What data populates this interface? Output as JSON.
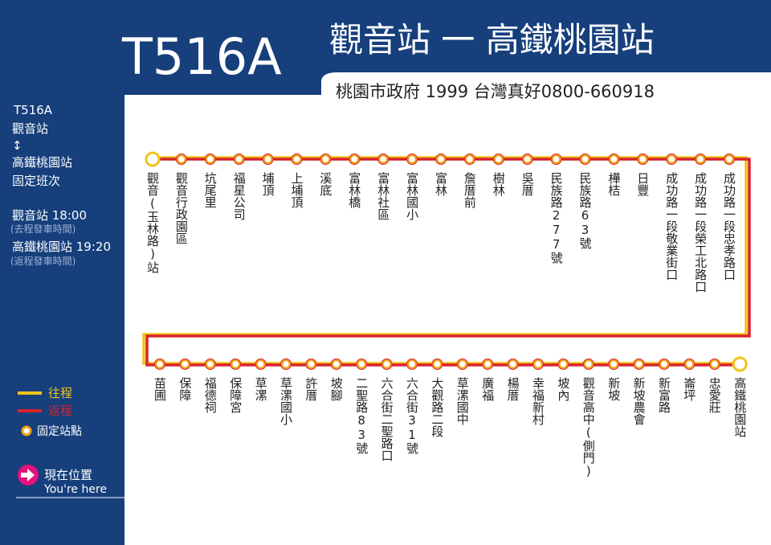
{
  "header": {
    "route": "T516A",
    "title": "觀音站 一 高鐵桃園站",
    "hotline": "桃園市政府 1999  台灣真好0800-660918"
  },
  "sidebar": {
    "route": "T516A",
    "from": "觀音站",
    "arrow": "↕",
    "to": "高鐵桃園站",
    "service": "固定班次",
    "schedule": [
      {
        "time": "觀音站 18:00",
        "note": "(去程發車時間)"
      },
      {
        "time": "高鐵桃園站 19:20",
        "note": "(返程發車時間)"
      }
    ]
  },
  "legend": {
    "outbound": "往程",
    "return": "返程",
    "fixed_stop": "固定站點",
    "here": "現在位置",
    "here_en": "You're here"
  },
  "stops": {
    "top_row": [
      "觀音(玉林路)站",
      "觀音行政園區",
      "坑尾里",
      "福星公司",
      "埔頂",
      "上埔頂",
      "溪底",
      "富林橋",
      "富林社區",
      "富林國小",
      "富林",
      "詹厝前",
      "樹林",
      "吳厝",
      "民族路277號",
      "民族路63號",
      "樺桔",
      "日豐",
      "成功路一段敬業街口",
      "成功路一段榮工北路口",
      "成功路一段忠孝路口"
    ],
    "bottom_row": [
      "苗圃",
      "保障",
      "福德祠",
      "保障宮",
      "草漯",
      "草漯國小",
      "許厝",
      "坡腳",
      "二聖路83號",
      "六合街二聖路口",
      "六合街31號",
      "大觀路二段",
      "草漯國中",
      "廣福",
      "楊厝",
      "幸福新村",
      "坡內",
      "觀音高中(側門)",
      "新坡",
      "新坡農會",
      "新富路",
      "崙坪",
      "忠愛莊",
      "高鐵桃園站"
    ]
  }
}
